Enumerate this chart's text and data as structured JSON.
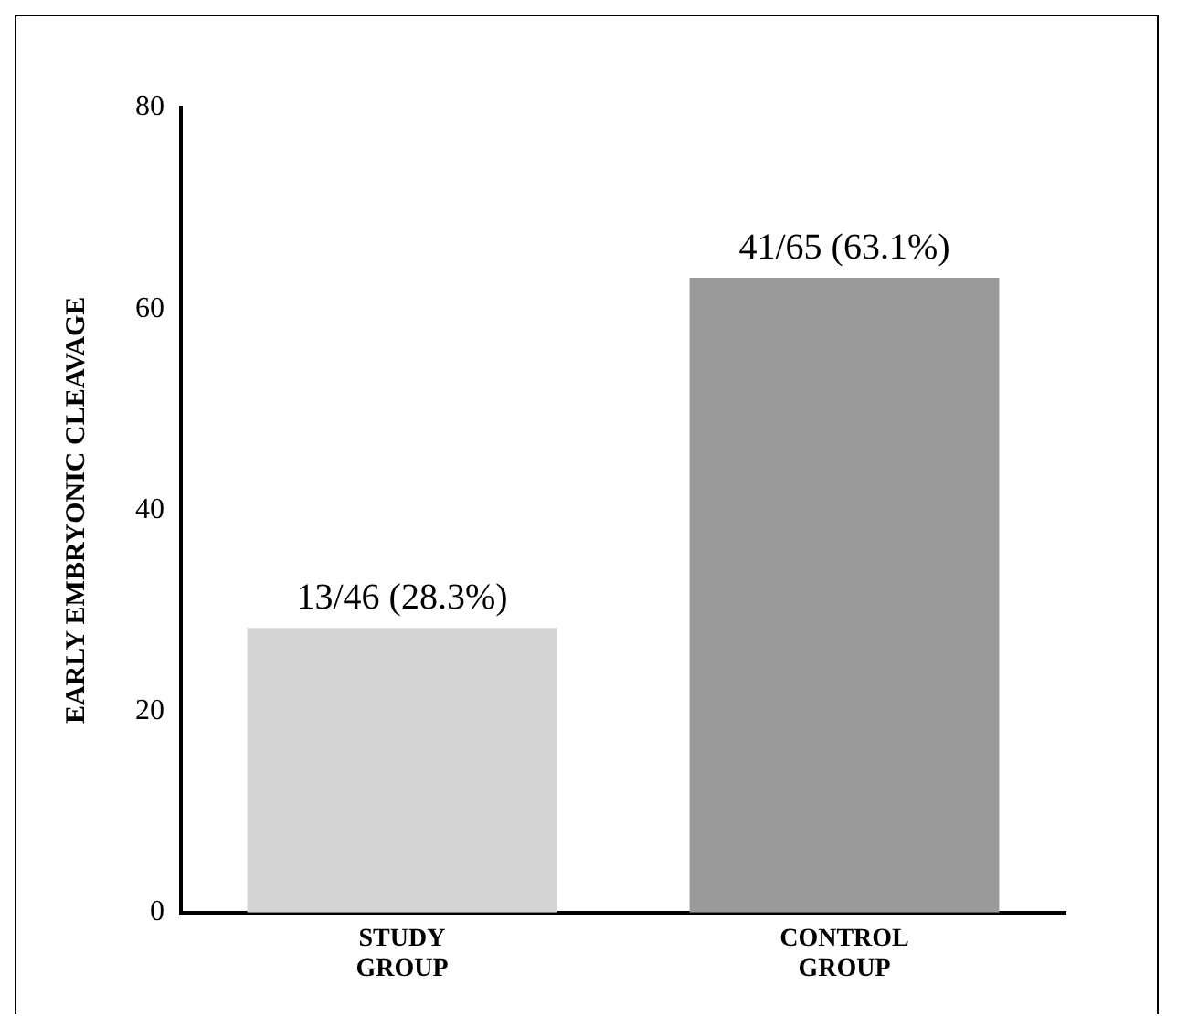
{
  "chart_data": {
    "type": "bar",
    "ylabel": "EARLY EMBRYONIC CLEAVAGE",
    "categories": [
      "STUDY GROUP",
      "CONTROL GROUP"
    ],
    "values": [
      28.3,
      63.1
    ],
    "colors": [
      "#d4d4d4",
      "#9a9a9a"
    ],
    "value_labels": [
      "13/46 (28.3%)",
      "41/65 (63.1%)"
    ],
    "ylim": [
      0,
      80
    ],
    "yticks": [
      0,
      20,
      40,
      60,
      80
    ],
    "grid": false,
    "legend": false
  }
}
